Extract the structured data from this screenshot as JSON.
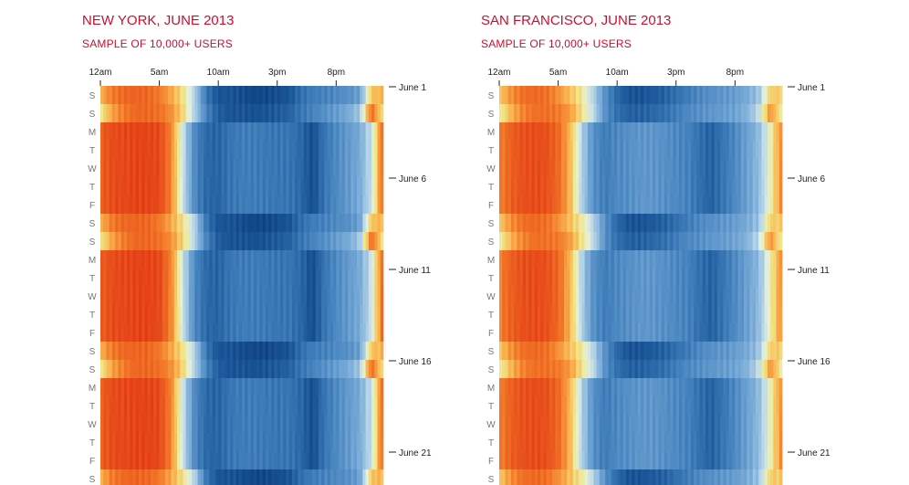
{
  "colors": {
    "title": "#c8102e",
    "scale_low": "#08306b",
    "scale_high": "#e03010"
  },
  "x_ticks": [
    "12am",
    "5am",
    "10am",
    "3pm",
    "8pm"
  ],
  "y_date_ticks": [
    "June 1",
    "June 6",
    "June 11",
    "June 16",
    "June 21"
  ],
  "day_labels": [
    "S",
    "S",
    "M",
    "T",
    "W",
    "T",
    "F",
    "S",
    "S",
    "M",
    "T",
    "W",
    "T",
    "F",
    "S",
    "S",
    "M",
    "T",
    "W",
    "T",
    "F",
    "S"
  ],
  "panels": [
    {
      "id": "ny",
      "title": "NEW YORK, JUNE 2013",
      "subtitle": "SAMPLE OF 10,000+ USERS"
    },
    {
      "id": "sf",
      "title": "SAN FRANCISCO, JUNE 2013",
      "subtitle": "SAMPLE OF 10,000+ USERS"
    }
  ],
  "chart_data": [
    {
      "type": "heatmap",
      "title": "NEW YORK, JUNE 2013",
      "subtitle": "SAMPLE OF 10,000+ USERS",
      "x_unit": "hour of day",
      "x_range": [
        0,
        24
      ],
      "x_ticks": [
        0,
        5,
        10,
        15,
        20
      ],
      "tick_labels_x": [
        "12am",
        "5am",
        "10am",
        "3pm",
        "8pm"
      ],
      "rows": [
        "June 1",
        "June 2",
        "June 3",
        "June 4",
        "June 5",
        "June 6",
        "June 7",
        "June 8",
        "June 9",
        "June 10",
        "June 11",
        "June 12",
        "June 13",
        "June 14",
        "June 15",
        "June 16",
        "June 17",
        "June 18",
        "June 19",
        "June 20",
        "June 21",
        "June 22"
      ],
      "row_day_labels": [
        "S",
        "S",
        "M",
        "T",
        "W",
        "T",
        "F",
        "S",
        "S",
        "M",
        "T",
        "W",
        "T",
        "F",
        "S",
        "S",
        "M",
        "T",
        "W",
        "T",
        "F",
        "S"
      ],
      "value_scale": "0 = dark blue (low activity) to 1 = red (high activity)",
      "profiles": {
        "weekday": [
          0.88,
          0.93,
          0.94,
          0.95,
          0.95,
          0.94,
          0.8,
          0.52,
          0.28,
          0.18,
          0.17,
          0.22,
          0.24,
          0.24,
          0.23,
          0.22,
          0.22,
          0.18,
          0.1,
          0.22,
          0.28,
          0.33,
          0.38,
          0.52
        ],
        "saturday": [
          0.72,
          0.82,
          0.86,
          0.87,
          0.86,
          0.82,
          0.74,
          0.64,
          0.48,
          0.22,
          0.12,
          0.12,
          0.1,
          0.08,
          0.08,
          0.1,
          0.12,
          0.2,
          0.24,
          0.26,
          0.28,
          0.3,
          0.35,
          0.7
        ],
        "sunday": [
          0.62,
          0.75,
          0.82,
          0.86,
          0.86,
          0.84,
          0.78,
          0.66,
          0.48,
          0.26,
          0.15,
          0.12,
          0.12,
          0.11,
          0.12,
          0.14,
          0.16,
          0.22,
          0.26,
          0.3,
          0.34,
          0.38,
          0.45,
          0.85
        ]
      }
    },
    {
      "type": "heatmap",
      "title": "SAN FRANCISCO, JUNE 2013",
      "subtitle": "SAMPLE OF 10,000+ USERS",
      "x_unit": "hour of day",
      "x_range": [
        0,
        24
      ],
      "x_ticks": [
        0,
        5,
        10,
        15,
        20
      ],
      "tick_labels_x": [
        "12am",
        "5am",
        "10am",
        "3pm",
        "8pm"
      ],
      "rows": [
        "June 1",
        "June 2",
        "June 3",
        "June 4",
        "June 5",
        "June 6",
        "June 7",
        "June 8",
        "June 9",
        "June 10",
        "June 11",
        "June 12",
        "June 13",
        "June 14",
        "June 15",
        "June 16",
        "June 17",
        "June 18",
        "June 19",
        "June 20",
        "June 21",
        "June 22"
      ],
      "row_day_labels": [
        "S",
        "S",
        "M",
        "T",
        "W",
        "T",
        "F",
        "S",
        "S",
        "M",
        "T",
        "W",
        "T",
        "F",
        "S",
        "S",
        "M",
        "T",
        "W",
        "T",
        "F",
        "S"
      ],
      "value_scale": "0 = dark blue (low activity) to 1 = red (high activity)",
      "profiles": {
        "weekday": [
          0.8,
          0.88,
          0.92,
          0.93,
          0.92,
          0.86,
          0.72,
          0.48,
          0.3,
          0.24,
          0.28,
          0.3,
          0.32,
          0.32,
          0.3,
          0.28,
          0.26,
          0.2,
          0.16,
          0.22,
          0.28,
          0.35,
          0.42,
          0.6
        ],
        "saturday": [
          0.68,
          0.78,
          0.84,
          0.86,
          0.84,
          0.78,
          0.7,
          0.62,
          0.48,
          0.3,
          0.18,
          0.12,
          0.12,
          0.14,
          0.16,
          0.2,
          0.24,
          0.28,
          0.3,
          0.32,
          0.34,
          0.38,
          0.44,
          0.68
        ],
        "sunday": [
          0.6,
          0.72,
          0.8,
          0.84,
          0.84,
          0.82,
          0.76,
          0.64,
          0.5,
          0.3,
          0.2,
          0.16,
          0.16,
          0.18,
          0.2,
          0.24,
          0.28,
          0.3,
          0.32,
          0.34,
          0.36,
          0.4,
          0.5,
          0.78
        ]
      }
    }
  ]
}
